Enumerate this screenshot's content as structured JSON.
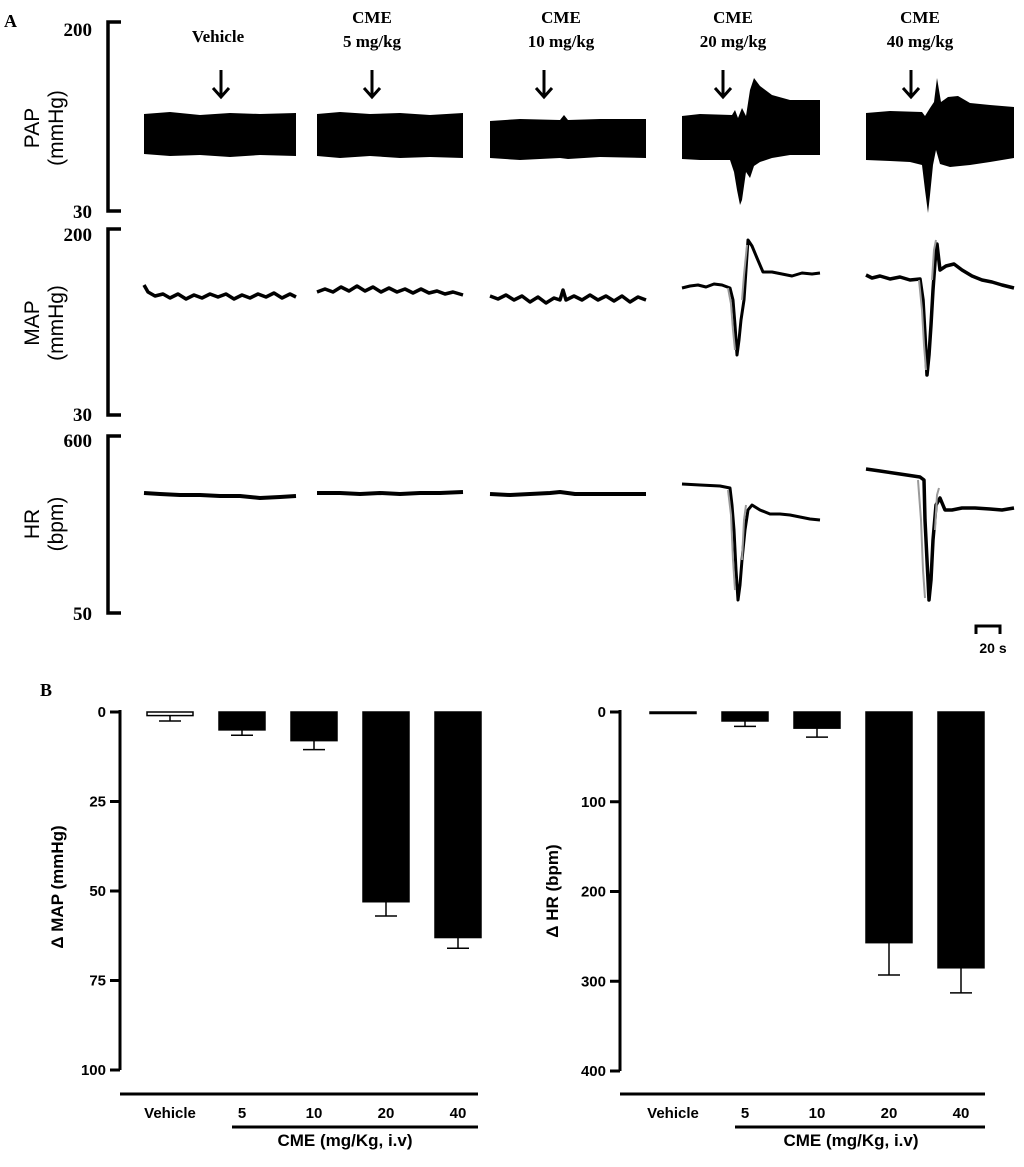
{
  "panel_a": {
    "letter": "A",
    "doses": [
      {
        "line1": "",
        "line2": "Vehicle"
      },
      {
        "line1": "CME",
        "line2": "5 mg/kg"
      },
      {
        "line1": "CME",
        "line2": "10 mg/kg"
      },
      {
        "line1": "CME",
        "line2": "20 mg/kg"
      },
      {
        "line1": "CME",
        "line2": "40 mg/kg"
      }
    ],
    "traces": [
      {
        "name": "PAP",
        "unit": "(mmHg)",
        "top_label": "200",
        "bottom_label": "30"
      },
      {
        "name": "MAP",
        "unit": "(mmHg)",
        "top_label": "200",
        "bottom_label": "30"
      },
      {
        "name": "HR",
        "unit": "(bpm)",
        "top_label": "600",
        "bottom_label": "50"
      }
    ],
    "time_scale_label": "20 s"
  },
  "panel_b": {
    "letter": "B"
  },
  "chart_data": [
    {
      "type": "bar",
      "ylabel": "Δ MAP (mmHg)",
      "xlabel": "CME (mg/Kg, i.v)",
      "categories": [
        "Vehicle",
        "5",
        "10",
        "20",
        "40"
      ],
      "values": [
        1,
        5,
        8,
        53,
        63
      ],
      "errors": [
        1.5,
        1.5,
        2.5,
        4,
        3
      ],
      "yticks": [
        "0",
        "25",
        "50",
        "75",
        "100"
      ],
      "ylim": [
        0,
        100
      ],
      "inverted": true,
      "bar_colors": [
        "#ffffff",
        "#000000",
        "#000000",
        "#000000",
        "#000000"
      ]
    },
    {
      "type": "bar",
      "ylabel": "Δ HR (bpm)",
      "xlabel": "CME (mg/Kg, i.v)",
      "categories": [
        "Vehicle",
        "5",
        "10",
        "20",
        "40"
      ],
      "values": [
        1,
        10,
        18,
        257,
        285
      ],
      "errors": [
        0,
        6,
        10,
        36,
        28
      ],
      "yticks": [
        "0",
        "100",
        "200",
        "300",
        "400"
      ],
      "ylim": [
        0,
        400
      ],
      "inverted": true,
      "bar_colors": [
        "#ffffff",
        "#000000",
        "#000000",
        "#000000",
        "#000000"
      ]
    }
  ]
}
